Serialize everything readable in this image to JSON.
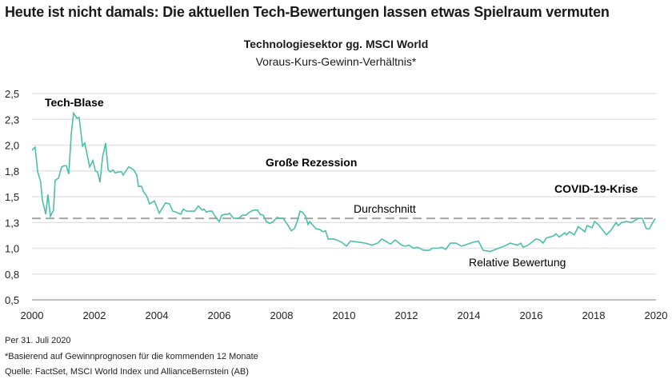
{
  "title": "Heute ist nicht damals: Die aktuellen Tech-Bewertungen lassen etwas Spielraum vermuten",
  "footer": {
    "date_note": "Per 31. Juli 2020",
    "footnote": "*Basierend auf Gewinnprognosen für die kommenden 12 Monate",
    "source": "Quelle: FactSet, MSCI World Index und AllianceBernstein (AB)"
  },
  "colors": {
    "series": "#4dbfa8",
    "average": "#a6a6a6",
    "grid": "#e3e3e3"
  },
  "chart_data": {
    "type": "line",
    "title": "Technologiesektor gg. MSCI World",
    "subtitle": "Voraus-Kurs-Gewinn-Verhältnis*",
    "xlabel": "",
    "ylabel": "",
    "xlim": [
      2000,
      2020
    ],
    "ylim": [
      0.5,
      2.5
    ],
    "grid": true,
    "x_ticks": [
      2000,
      2002,
      2004,
      2006,
      2008,
      2010,
      2012,
      2014,
      2016,
      2018,
      2020
    ],
    "x_tick_labels": [
      "2000",
      "2002",
      "2004",
      "2006",
      "2008",
      "2010",
      "2012",
      "2014",
      "2016",
      "2018",
      "2020"
    ],
    "y_ticks": [
      2.5,
      2.25,
      2.0,
      1.75,
      1.5,
      1.25,
      1.0,
      0.75,
      0.5
    ],
    "y_tick_labels": [
      "2,5",
      "2,3",
      "2,0",
      "1,8",
      "1,5",
      "1,3",
      "1,0",
      "0,8",
      "0,5"
    ],
    "average": {
      "label": "Durchschnitt",
      "value": 1.29
    },
    "series": [
      {
        "name": "Relative Bewertung",
        "x": [
          2000.0,
          2000.1,
          2000.18,
          2000.28,
          2000.33,
          2000.44,
          2000.51,
          2000.59,
          2000.69,
          2000.74,
          2000.85,
          2000.95,
          2001.03,
          2001.1,
          2001.18,
          2001.26,
          2001.33,
          2001.44,
          2001.51,
          2001.62,
          2001.69,
          2001.85,
          2001.95,
          2002.03,
          2002.1,
          2002.18,
          2002.26,
          2002.36,
          2002.44,
          2002.51,
          2002.59,
          2002.67,
          2002.77,
          2002.87,
          2002.92,
          2003.1,
          2003.26,
          2003.36,
          2003.41,
          2003.51,
          2003.59,
          2003.67,
          2003.77,
          2003.92,
          2004.08,
          2004.18,
          2004.28,
          2004.41,
          2004.51,
          2004.62,
          2004.77,
          2004.85,
          2004.95,
          2005.05,
          2005.21,
          2005.33,
          2005.46,
          2005.51,
          2005.59,
          2005.67,
          2005.77,
          2005.85,
          2005.92,
          2006.0,
          2006.08,
          2006.21,
          2006.28,
          2006.33,
          2006.46,
          2006.54,
          2006.62,
          2006.74,
          2006.85,
          2006.97,
          2007.1,
          2007.23,
          2007.31,
          2007.41,
          2007.51,
          2007.62,
          2007.74,
          2007.85,
          2007.95,
          2008.05,
          2008.21,
          2008.31,
          2008.41,
          2008.51,
          2008.59,
          2008.67,
          2008.77,
          2008.85,
          2008.9,
          2009.1,
          2009.23,
          2009.33,
          2009.41,
          2009.49,
          2009.56,
          2009.69,
          2009.92,
          2010.08,
          2010.21,
          2010.46,
          2010.69,
          2010.9,
          2011.08,
          2011.21,
          2011.49,
          2011.64,
          2011.85,
          2011.97,
          2012.08,
          2012.23,
          2012.36,
          2012.56,
          2012.74,
          2012.82,
          2013.0,
          2013.13,
          2013.26,
          2013.41,
          2013.59,
          2013.77,
          2013.97,
          2014.15,
          2014.31,
          2014.46,
          2014.69,
          2014.87,
          2015.13,
          2015.33,
          2015.56,
          2015.67,
          2015.74,
          2015.9,
          2016.15,
          2016.28,
          2016.38,
          2016.49,
          2016.72,
          2016.79,
          2016.9,
          2017.08,
          2017.13,
          2017.23,
          2017.38,
          2017.51,
          2017.72,
          2017.79,
          2017.95,
          2018.03,
          2018.15,
          2018.41,
          2018.54,
          2018.72,
          2018.79,
          2018.9,
          2019.05,
          2019.21,
          2019.44,
          2019.56,
          2019.69,
          2019.79,
          2019.97
        ],
        "y": [
          1.95,
          1.98,
          1.75,
          1.64,
          1.47,
          1.33,
          1.52,
          1.31,
          1.37,
          1.66,
          1.68,
          1.79,
          1.8,
          1.8,
          1.72,
          2.11,
          2.31,
          2.26,
          2.27,
          1.99,
          2.02,
          1.79,
          1.85,
          1.75,
          1.74,
          1.64,
          1.88,
          2.02,
          1.76,
          1.74,
          1.76,
          1.73,
          1.74,
          1.74,
          1.71,
          1.79,
          1.76,
          1.71,
          1.6,
          1.6,
          1.54,
          1.51,
          1.43,
          1.46,
          1.34,
          1.39,
          1.44,
          1.43,
          1.36,
          1.35,
          1.33,
          1.38,
          1.36,
          1.36,
          1.36,
          1.41,
          1.37,
          1.38,
          1.35,
          1.36,
          1.36,
          1.32,
          1.29,
          1.26,
          1.32,
          1.33,
          1.33,
          1.34,
          1.29,
          1.29,
          1.29,
          1.32,
          1.32,
          1.35,
          1.37,
          1.37,
          1.33,
          1.32,
          1.26,
          1.24,
          1.26,
          1.3,
          1.29,
          1.29,
          1.22,
          1.17,
          1.19,
          1.27,
          1.36,
          1.35,
          1.31,
          1.23,
          1.26,
          1.19,
          1.18,
          1.16,
          1.17,
          1.09,
          1.09,
          1.09,
          1.06,
          1.02,
          1.07,
          1.06,
          1.05,
          1.03,
          1.05,
          1.09,
          1.04,
          1.08,
          1.03,
          1.02,
          1.03,
          1.0,
          1.01,
          0.98,
          0.98,
          1.0,
          1.0,
          1.01,
          0.99,
          1.05,
          1.05,
          1.02,
          1.04,
          1.06,
          1.07,
          0.98,
          0.97,
          0.99,
          1.02,
          1.05,
          1.03,
          1.05,
          1.01,
          1.03,
          1.09,
          1.08,
          1.05,
          1.1,
          1.12,
          1.14,
          1.11,
          1.15,
          1.13,
          1.16,
          1.13,
          1.21,
          1.16,
          1.22,
          1.2,
          1.26,
          1.23,
          1.13,
          1.17,
          1.25,
          1.22,
          1.25,
          1.26,
          1.25,
          1.29,
          1.29,
          1.19,
          1.19,
          1.29
        ]
      }
    ],
    "annotations": [
      "Tech-Blase",
      "Große Rezession",
      "COVID-19-Krise",
      "Durchschnitt",
      "Relative Bewertung"
    ]
  }
}
